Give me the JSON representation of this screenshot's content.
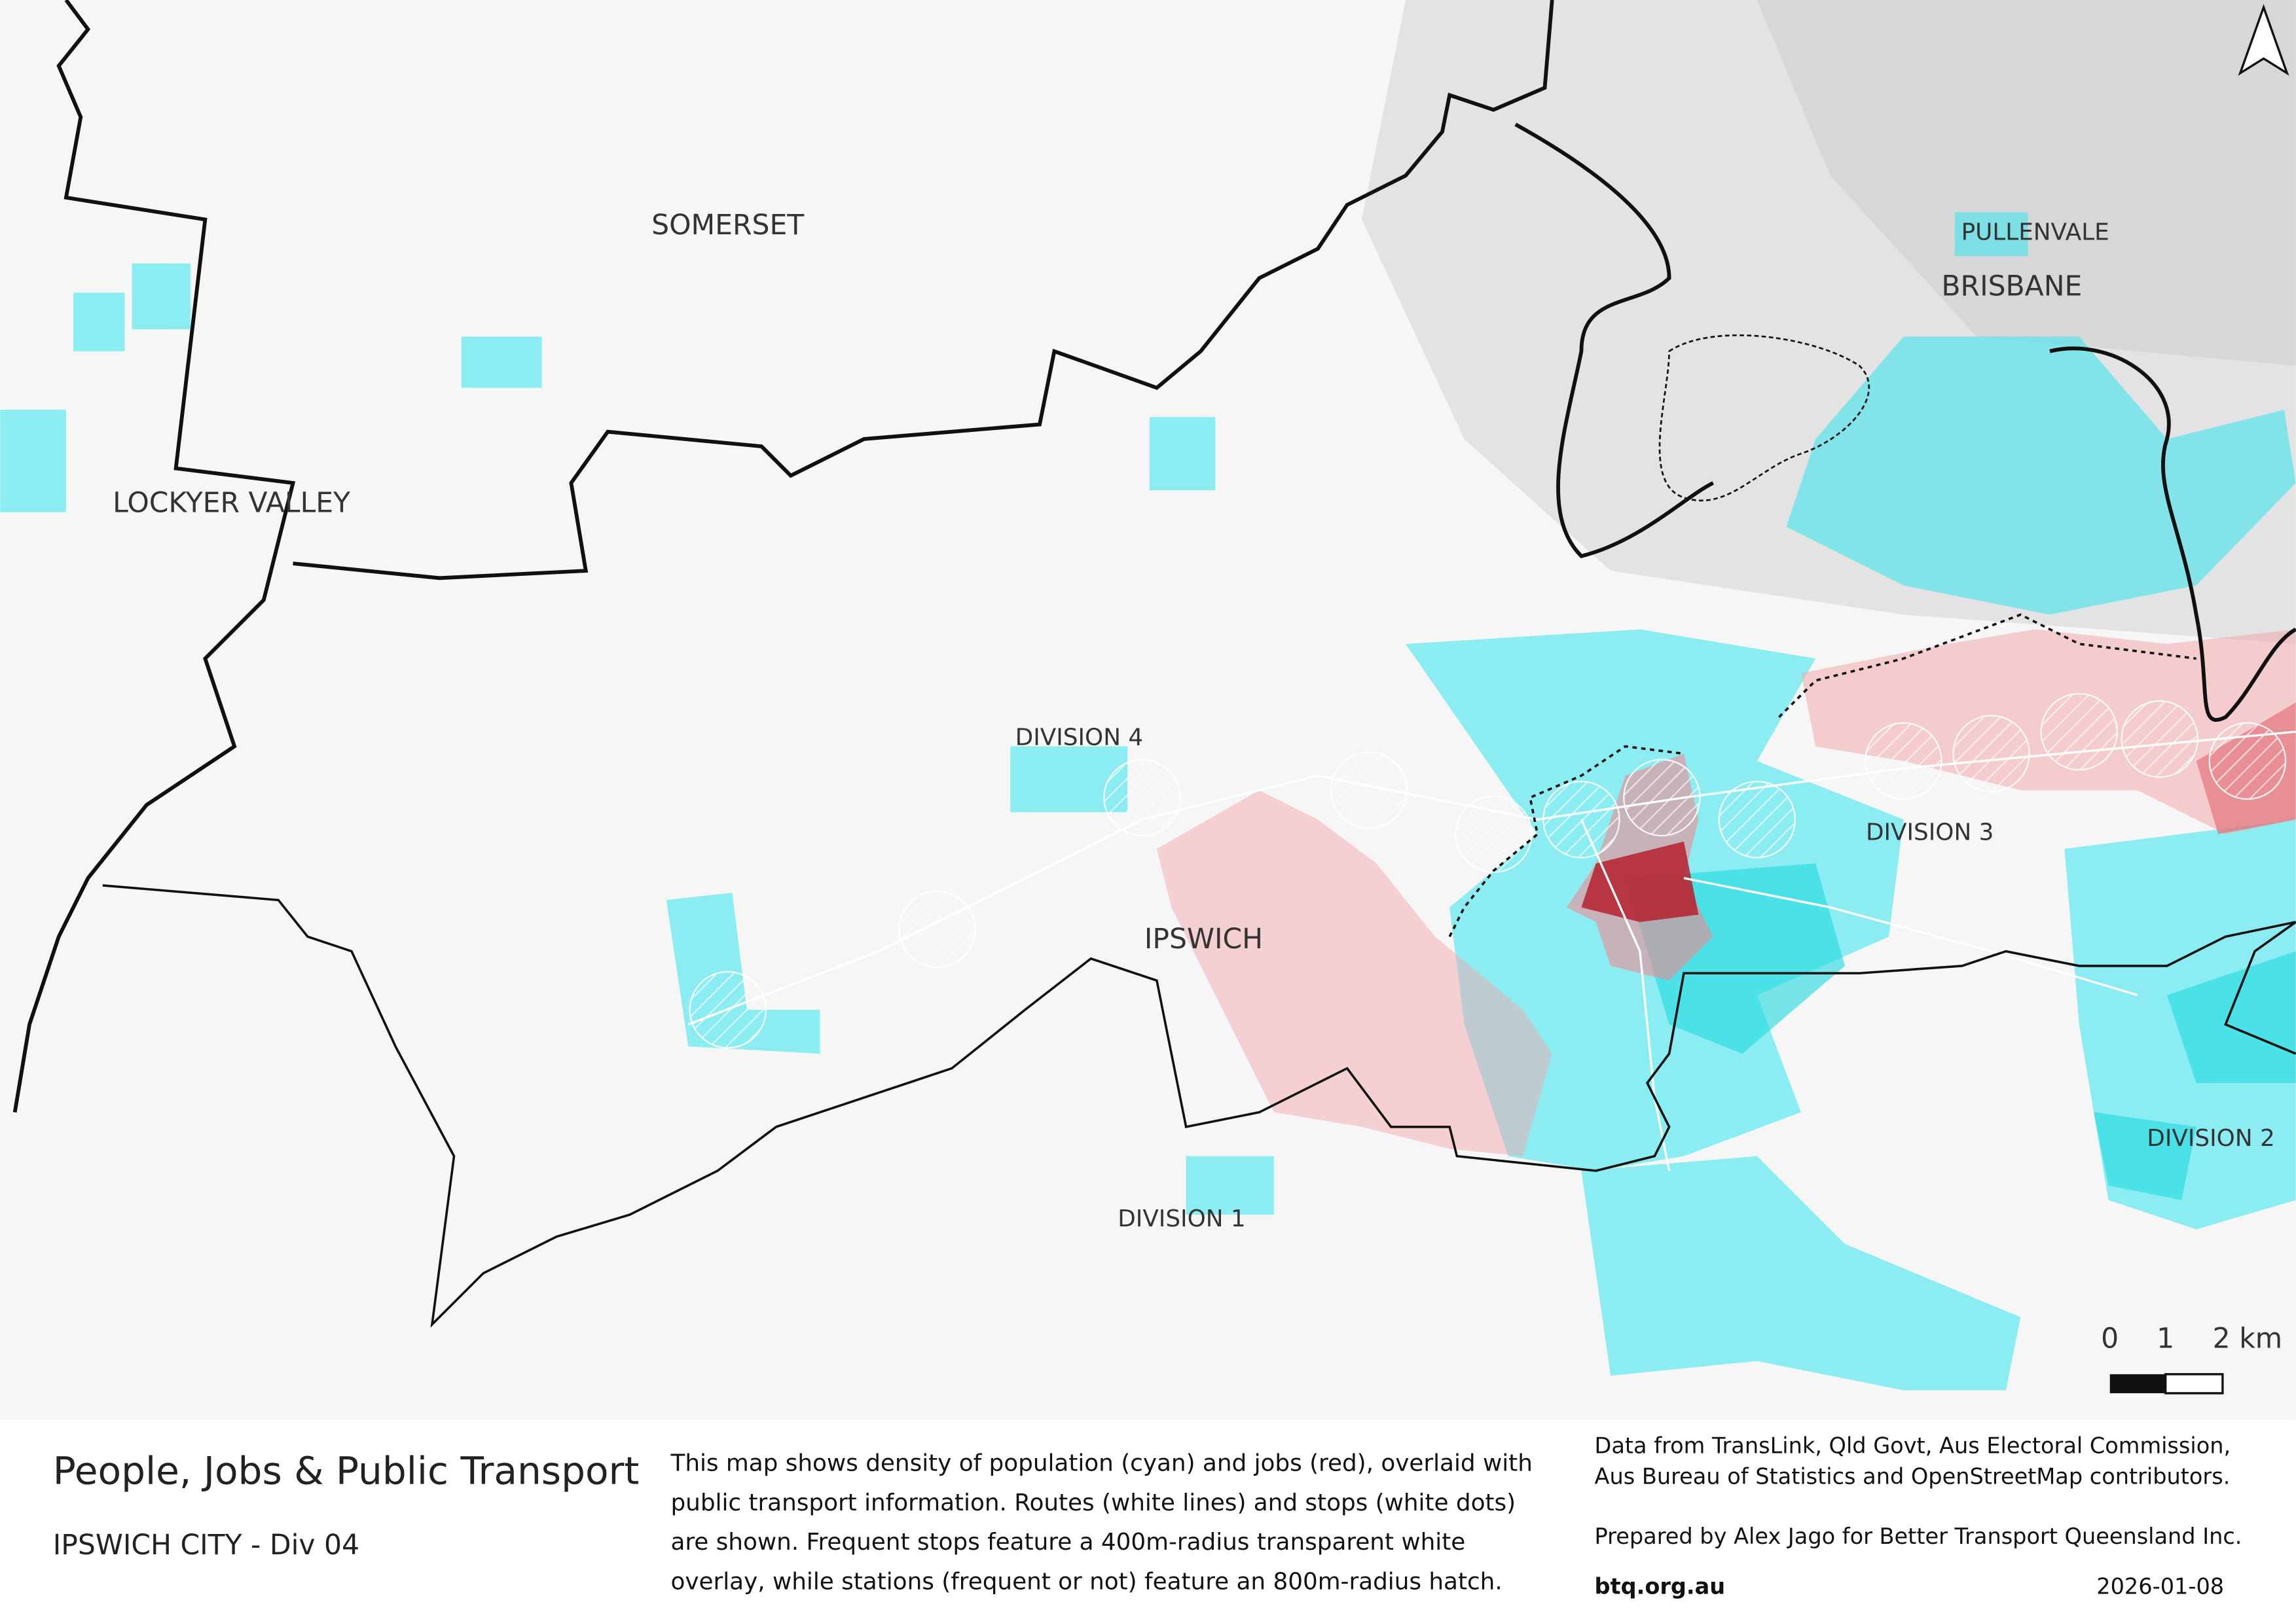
{
  "map": {
    "labels": [
      "SOMERSET",
      "LOCKYER VALLEY",
      "PULLENVALE",
      "BRISBANE",
      "DIVISION 4",
      "IPSWICH",
      "DIVISION 3",
      "DIVISION 2",
      "DIVISION 1"
    ],
    "scale": [
      "0",
      "1",
      "2 km"
    ]
  },
  "footer": {
    "title": "People, Jobs & Public Transport",
    "subtitle": "IPSWICH CITY - Div 04",
    "description": [
      "This map shows density of population (cyan) and jobs (red), overlaid with",
      "public transport information. Routes (white lines) and stops (white dots)",
      "are shown. Frequent stops feature a 400m-radius transparent white",
      "overlay, while stations (frequent or not) feature an 800m-radius hatch."
    ],
    "credits": [
      "Data from TransLink,  Qld Govt,  Aus Electoral Commission,",
      "Aus Bureau of Statistics and OpenStreetMap contributors."
    ],
    "prepared": "Prepared by Alex Jago for Better Transport Queensland Inc.",
    "website": "btq.org.au",
    "date": "2026-01-08"
  }
}
